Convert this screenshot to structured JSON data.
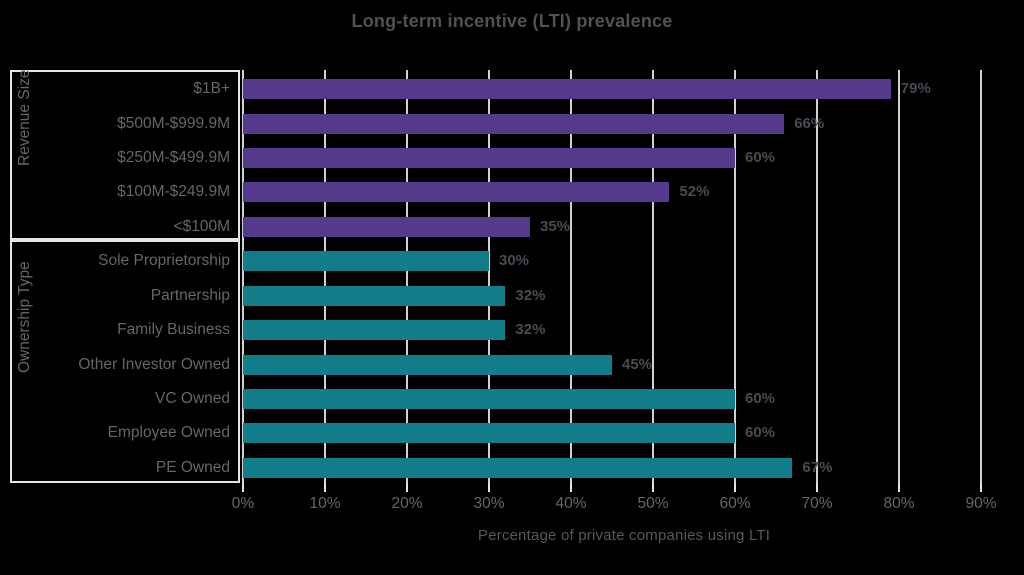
{
  "colors": {
    "background": "#000000",
    "revenue_size_bar": "#553a8c",
    "ownership_type_bar": "#117c8a",
    "gridline": "#e3e3e3",
    "title_text": "#505153",
    "label_text": "#646669",
    "value_label_text": "#474b52"
  },
  "chart_data": {
    "type": "bar",
    "orientation": "horizontal",
    "title": "Long-term incentive (LTI) prevalence",
    "xlabel": "Percentage of private companies using LTI",
    "xlim": [
      0,
      90
    ],
    "x_ticks": [
      0,
      10,
      20,
      30,
      40,
      50,
      60,
      70,
      80,
      90
    ],
    "x_tick_labels": [
      "0%",
      "10%",
      "20%",
      "30%",
      "40%",
      "50%",
      "60%",
      "70%",
      "80%",
      "90%"
    ],
    "grid": true,
    "legend": false,
    "groups": [
      {
        "name": "Revenue Size",
        "color_key": "revenue_size_bar",
        "categories": [
          "$1B+",
          "$500M-$999.9M",
          "$250M-$499.9M",
          "$100M-$249.9M",
          "<$100M"
        ],
        "values": [
          79,
          66,
          60,
          52,
          35
        ],
        "value_labels": [
          "79%",
          "66%",
          "60%",
          "52%",
          "35%"
        ]
      },
      {
        "name": "Ownership Type",
        "color_key": "ownership_type_bar",
        "categories": [
          "Sole Proprietorship",
          "Partnership",
          "Family Business",
          "Other Investor Owned",
          "VC Owned",
          "Employee Owned",
          "PE Owned"
        ],
        "values": [
          30,
          32,
          32,
          45,
          60,
          60,
          67
        ],
        "value_labels": [
          "30%",
          "32%",
          "32%",
          "45%",
          "60%",
          "60%",
          "67%"
        ]
      }
    ]
  }
}
